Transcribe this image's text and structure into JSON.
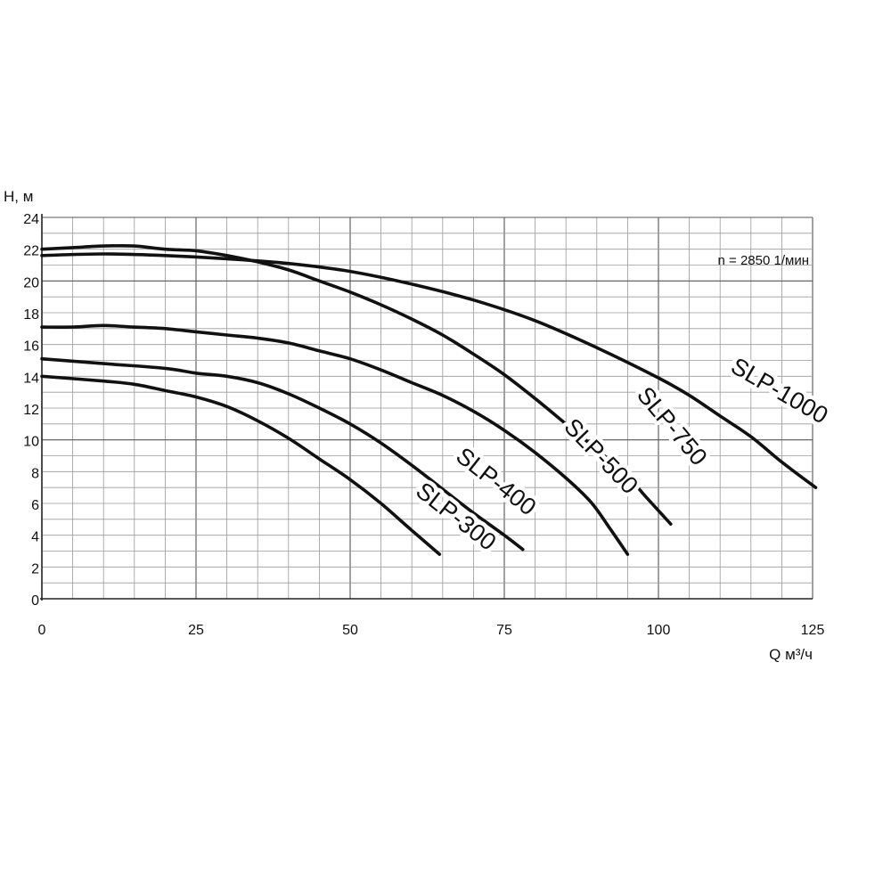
{
  "chart_data": {
    "type": "line",
    "title": "",
    "annotation": "n = 2850 1/мин",
    "xlabel": "Q м³/ч",
    "ylabel": "H, м",
    "xlim": [
      0,
      125
    ],
    "ylim": [
      0,
      24
    ],
    "xticks": [
      "0",
      "25",
      "50",
      "75",
      "100",
      "125"
    ],
    "yticks": [
      "0",
      "2",
      "4",
      "6",
      "8",
      "10",
      "12",
      "14",
      "16",
      "18",
      "20",
      "22",
      "24"
    ],
    "grid": true,
    "series": [
      {
        "name": "SLP-300",
        "color": "#111111",
        "points": [
          [
            0,
            14.0
          ],
          [
            10,
            13.7
          ],
          [
            15,
            13.5
          ],
          [
            20,
            13.1
          ],
          [
            25,
            12.7
          ],
          [
            30,
            12.1
          ],
          [
            35,
            11.2
          ],
          [
            40,
            10.1
          ],
          [
            45,
            8.8
          ],
          [
            50,
            7.5
          ],
          [
            55,
            6.0
          ],
          [
            60,
            4.3
          ],
          [
            64.5,
            2.8
          ]
        ]
      },
      {
        "name": "SLP-400",
        "color": "#111111",
        "points": [
          [
            0,
            15.1
          ],
          [
            10,
            14.8
          ],
          [
            20,
            14.5
          ],
          [
            25,
            14.2
          ],
          [
            30,
            14.0
          ],
          [
            35,
            13.6
          ],
          [
            40,
            12.9
          ],
          [
            45,
            12.0
          ],
          [
            50,
            11.0
          ],
          [
            55,
            9.8
          ],
          [
            60,
            8.4
          ],
          [
            65,
            6.9
          ],
          [
            70,
            5.4
          ],
          [
            75,
            4.0
          ],
          [
            78,
            3.1
          ]
        ]
      },
      {
        "name": "SLP-500",
        "color": "#111111",
        "points": [
          [
            0,
            17.1
          ],
          [
            5,
            17.1
          ],
          [
            10,
            17.2
          ],
          [
            15,
            17.1
          ],
          [
            20,
            17.0
          ],
          [
            25,
            16.8
          ],
          [
            30,
            16.6
          ],
          [
            35,
            16.4
          ],
          [
            40,
            16.1
          ],
          [
            45,
            15.6
          ],
          [
            50,
            15.1
          ],
          [
            55,
            14.4
          ],
          [
            60,
            13.6
          ],
          [
            65,
            12.8
          ],
          [
            70,
            11.8
          ],
          [
            75,
            10.6
          ],
          [
            80,
            9.2
          ],
          [
            85,
            7.6
          ],
          [
            89,
            6.1
          ],
          [
            92,
            4.5
          ],
          [
            95,
            2.8
          ]
        ]
      },
      {
        "name": "SLP-750",
        "color": "#111111",
        "points": [
          [
            0,
            22.0
          ],
          [
            5,
            22.1
          ],
          [
            10,
            22.2
          ],
          [
            15,
            22.2
          ],
          [
            20,
            22.0
          ],
          [
            25,
            21.9
          ],
          [
            30,
            21.6
          ],
          [
            35,
            21.2
          ],
          [
            40,
            20.7
          ],
          [
            45,
            20.0
          ],
          [
            50,
            19.3
          ],
          [
            55,
            18.5
          ],
          [
            60,
            17.6
          ],
          [
            65,
            16.6
          ],
          [
            70,
            15.4
          ],
          [
            75,
            14.1
          ],
          [
            80,
            12.6
          ],
          [
            85,
            11.0
          ],
          [
            90,
            9.4
          ],
          [
            95,
            7.7
          ],
          [
            98,
            6.4
          ],
          [
            102,
            4.7
          ]
        ]
      },
      {
        "name": "SLP-1000",
        "color": "#111111",
        "points": [
          [
            0,
            21.6
          ],
          [
            10,
            21.7
          ],
          [
            20,
            21.6
          ],
          [
            30,
            21.4
          ],
          [
            40,
            21.1
          ],
          [
            50,
            20.6
          ],
          [
            60,
            19.8
          ],
          [
            70,
            18.8
          ],
          [
            80,
            17.5
          ],
          [
            90,
            15.8
          ],
          [
            100,
            13.9
          ],
          [
            105,
            12.8
          ],
          [
            110,
            11.5
          ],
          [
            115,
            10.2
          ],
          [
            120,
            8.6
          ],
          [
            125.5,
            7.0
          ]
        ]
      }
    ],
    "curve_labels": [
      {
        "series": "SLP-300",
        "text": "SLP-300",
        "x": 67,
        "y": 5.1,
        "angle": 38
      },
      {
        "series": "SLP-400",
        "text": "SLP-400",
        "x": 73.5,
        "y": 7.3,
        "angle": 38
      },
      {
        "series": "SLP-500",
        "text": "SLP-500",
        "x": 90.5,
        "y": 8.9,
        "angle": 46
      },
      {
        "series": "SLP-750",
        "text": "SLP-750",
        "x": 102,
        "y": 10.8,
        "angle": 50
      },
      {
        "series": "SLP-1000",
        "text": "SLP-1000",
        "x": 119.5,
        "y": 13.0,
        "angle": 30
      }
    ]
  }
}
